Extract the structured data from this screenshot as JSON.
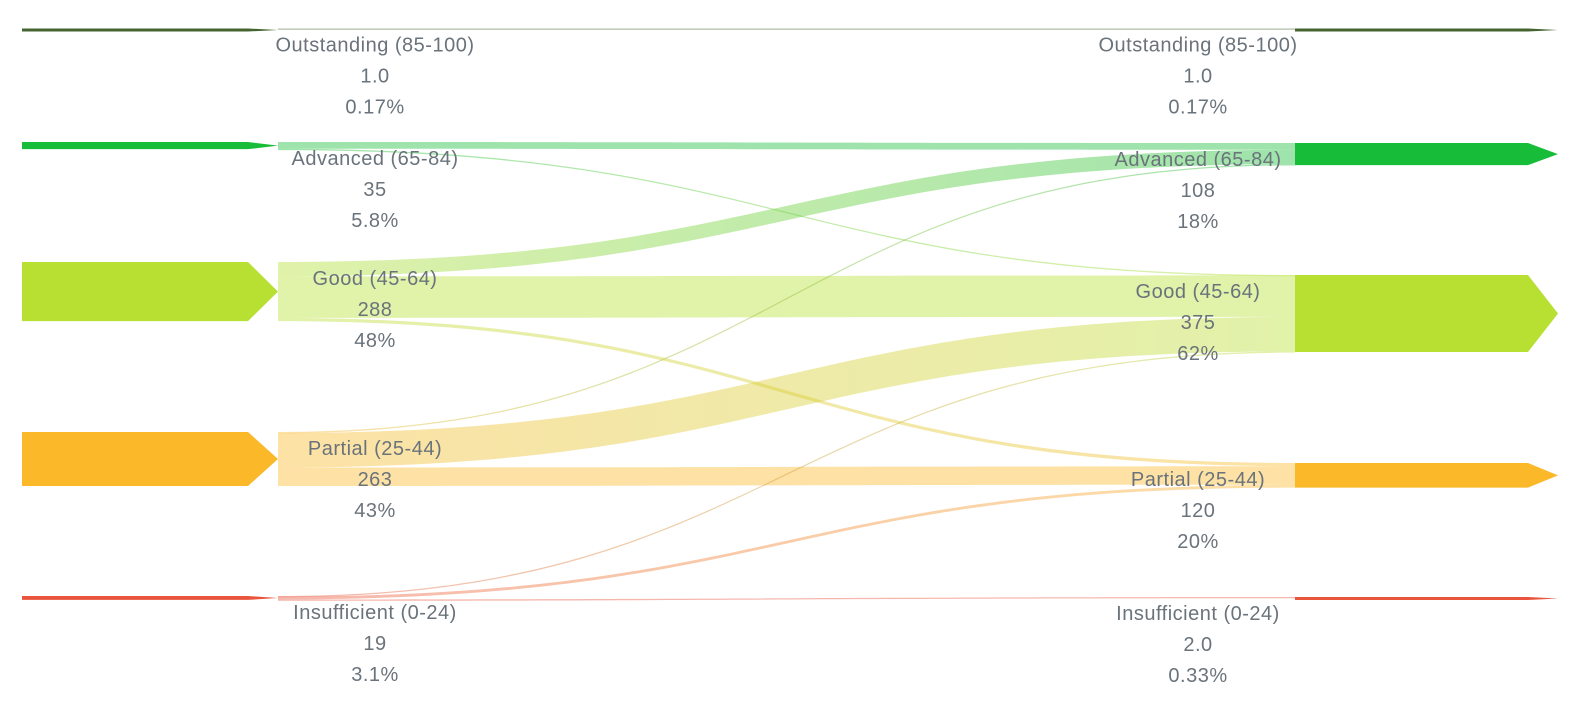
{
  "chart_data": {
    "type": "sankey",
    "title": "",
    "orientation": "left-to-right",
    "background": "#ffffff",
    "text_color": "#6a737b",
    "link_opacity": 0.42,
    "categories": [
      "Outstanding (85-100)",
      "Advanced (65-84)",
      "Good (45-64)",
      "Partial (25-44)",
      "Insufficient (0-24)"
    ],
    "nodes_left": [
      {
        "id": "outstanding",
        "label": "Outstanding (85-100)",
        "value": "1.0",
        "percent": "0.17%",
        "value_num": 1,
        "color": "#456430"
      },
      {
        "id": "advanced",
        "label": "Advanced (65-84)",
        "value": "35",
        "percent": "5.8%",
        "value_num": 35,
        "color": "#17bd38"
      },
      {
        "id": "good",
        "label": "Good (45-64)",
        "value": "288",
        "percent": "48%",
        "value_num": 288,
        "color": "#b7e033"
      },
      {
        "id": "partial",
        "label": "Partial (25-44)",
        "value": "263",
        "percent": "43%",
        "value_num": 263,
        "color": "#fbb829"
      },
      {
        "id": "insufficient",
        "label": "Insufficient (0-24)",
        "value": "19",
        "percent": "3.1%",
        "value_num": 19,
        "color": "#e8543c"
      }
    ],
    "nodes_right": [
      {
        "id": "outstanding",
        "label": "Outstanding (85-100)",
        "value": "1.0",
        "percent": "0.17%",
        "value_num": 1,
        "color": "#456430"
      },
      {
        "id": "advanced",
        "label": "Advanced (65-84)",
        "value": "108",
        "percent": "18%",
        "value_num": 108,
        "color": "#17bd38"
      },
      {
        "id": "good",
        "label": "Good (45-64)",
        "value": "375",
        "percent": "62%",
        "value_num": 375,
        "color": "#b7e033"
      },
      {
        "id": "partial",
        "label": "Partial (25-44)",
        "value": "120",
        "percent": "20%",
        "value_num": 120,
        "color": "#fbb829"
      },
      {
        "id": "insufficient",
        "label": "Insufficient (0-24)",
        "value": "2.0",
        "percent": "0.33%",
        "value_num": 2,
        "color": "#e8543c"
      }
    ],
    "links": [
      {
        "source": "outstanding",
        "target": "outstanding",
        "value": 1
      },
      {
        "source": "advanced",
        "target": "advanced",
        "value": 33
      },
      {
        "source": "advanced",
        "target": "good",
        "value": 2
      },
      {
        "source": "good",
        "target": "advanced",
        "value": 70
      },
      {
        "source": "good",
        "target": "good",
        "value": 202
      },
      {
        "source": "good",
        "target": "partial",
        "value": 16
      },
      {
        "source": "partial",
        "target": "advanced",
        "value": 5
      },
      {
        "source": "partial",
        "target": "good",
        "value": 168
      },
      {
        "source": "partial",
        "target": "partial",
        "value": 90
      },
      {
        "source": "insufficient",
        "target": "good",
        "value": 3
      },
      {
        "source": "insufficient",
        "target": "partial",
        "value": 14
      },
      {
        "source": "insufficient",
        "target": "insufficient",
        "value": 2
      }
    ]
  }
}
